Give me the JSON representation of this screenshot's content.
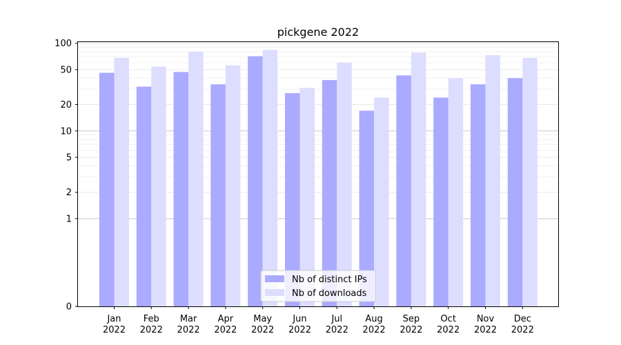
{
  "chart_data": {
    "type": "bar",
    "title": "pickgene 2022",
    "xlabel": "",
    "ylabel": "",
    "y_scale": "symlog",
    "yticks": [
      0,
      1,
      2,
      5,
      10,
      20,
      50,
      100
    ],
    "ylim": [
      0,
      103
    ],
    "categories": [
      {
        "month": "Jan",
        "year": "2022"
      },
      {
        "month": "Feb",
        "year": "2022"
      },
      {
        "month": "Mar",
        "year": "2022"
      },
      {
        "month": "Apr",
        "year": "2022"
      },
      {
        "month": "May",
        "year": "2022"
      },
      {
        "month": "Jun",
        "year": "2022"
      },
      {
        "month": "Jul",
        "year": "2022"
      },
      {
        "month": "Aug",
        "year": "2022"
      },
      {
        "month": "Sep",
        "year": "2022"
      },
      {
        "month": "Oct",
        "year": "2022"
      },
      {
        "month": "Nov",
        "year": "2022"
      },
      {
        "month": "Dec",
        "year": "2022"
      }
    ],
    "series": [
      {
        "name": "Nb of distinct IPs",
        "color": "#aaaaff",
        "values": [
          46,
          32,
          47,
          34,
          71,
          27,
          38,
          17,
          43,
          24,
          34,
          40
        ]
      },
      {
        "name": "Nb of downloads",
        "color": "#ddddff",
        "values": [
          68,
          54,
          80,
          56,
          84,
          31,
          60,
          24,
          78,
          40,
          73,
          68
        ]
      }
    ],
    "grid": true,
    "legend_position": "bottom-center"
  }
}
